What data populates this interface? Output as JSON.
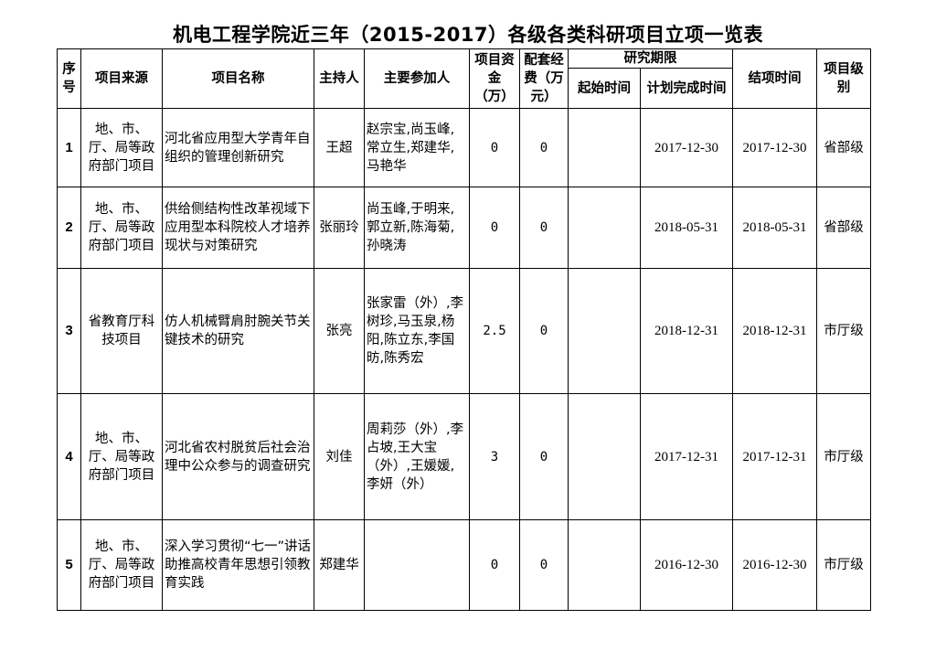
{
  "title": "机电工程学院近三年（2015-2017）各级各类科研项目立项一览表",
  "headers": {
    "seq": "序号",
    "source": "项目来源",
    "name": "项目名称",
    "host": "主持人",
    "participants": "主要参加人",
    "funds": "项目资金（万）",
    "matching": "配套经费（万元）",
    "period": "研究期限",
    "start": "起始时间",
    "planned_end": "计划完成时间",
    "closing": "结项时间",
    "level": "项目级别"
  },
  "rows": [
    {
      "seq": "1",
      "source": "地、市、厅、局等政府部门项目",
      "name": "河北省应用型大学青年自组织的管理创新研究",
      "host": "王超",
      "participants": "赵宗宝,尚玉峰,常立生,郑建华,马艳华",
      "funds": "0",
      "matching": "0",
      "start": "",
      "planned_end": "2017-12-30",
      "closing": "2017-12-30",
      "level": "省部级"
    },
    {
      "seq": "2",
      "source": "地、市、厅、局等政府部门项目",
      "name": "供给侧结构性改革视域下应用型本科院校人才培养现状与对策研究",
      "host": "张丽玲",
      "participants": "尚玉峰,于明来,郭立新,陈海菊,孙晓涛",
      "funds": "0",
      "matching": "0",
      "start": "",
      "planned_end": "2018-05-31",
      "closing": "2018-05-31",
      "level": "省部级"
    },
    {
      "seq": "3",
      "source": "省教育厅科技项目",
      "name": "仿人机械臂肩肘腕关节关键技术的研究",
      "host": "张亮",
      "participants": "张家雷（外）,李树珍,马玉泉,杨阳,陈立东,李国昉,陈秀宏",
      "funds": "2.5",
      "matching": "0",
      "start": "",
      "planned_end": "2018-12-31",
      "closing": "2018-12-31",
      "level": "市厅级"
    },
    {
      "seq": "4",
      "source": "地、市、厅、局等政府部门项目",
      "name": "河北省农村脱贫后社会治理中公众参与的调查研究",
      "host": "刘佳",
      "participants": "周莉莎（外）,李占坡,王大宝（外）,王媛媛,李妍（外）",
      "funds": "3",
      "matching": "0",
      "start": "",
      "planned_end": "2017-12-31",
      "closing": "2017-12-31",
      "level": "市厅级"
    },
    {
      "seq": "5",
      "source": "地、市、厅、局等政府部门项目",
      "name": "深入学习贯彻“七一”讲话助推高校青年思想引领教育实践",
      "host": "郑建华",
      "participants": "",
      "funds": "0",
      "matching": "0",
      "start": "",
      "planned_end": "2016-12-30",
      "closing": "2016-12-30",
      "level": "市厅级"
    }
  ]
}
